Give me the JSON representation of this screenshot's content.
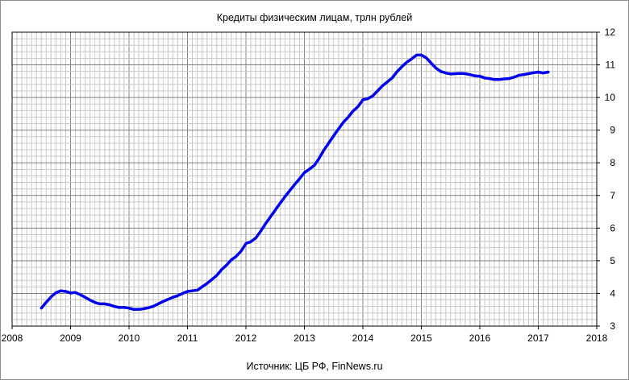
{
  "chart_data": {
    "type": "line",
    "title": "Кредиты физическим лицам,  трлн рублей",
    "source": "Источник: ЦБ РФ, FinNews.ru",
    "xlim": [
      2008,
      2018
    ],
    "ylim": [
      3,
      12
    ],
    "x_ticks": [
      "2008",
      "2009",
      "2010",
      "2011",
      "2012",
      "2013",
      "2014",
      "2015",
      "2016",
      "2017",
      "2018"
    ],
    "y_ticks": [
      "3",
      "4",
      "5",
      "6",
      "7",
      "8",
      "9",
      "10",
      "11",
      "12"
    ],
    "y_axis_side": "right",
    "grid": true,
    "legend": "none",
    "line_color": "#0000ee",
    "grid_color": "#c8c8c8",
    "major_grid_color": "#808080",
    "series": [
      {
        "x": [
          2008.5,
          2008.58,
          2008.67,
          2008.75,
          2008.83,
          2008.92,
          2009.0,
          2009.08,
          2009.17,
          2009.25,
          2009.33,
          2009.42,
          2009.5,
          2009.58,
          2009.67,
          2009.75,
          2009.83,
          2009.92,
          2010.0,
          2010.08,
          2010.17,
          2010.25,
          2010.33,
          2010.42,
          2010.5,
          2010.58,
          2010.67,
          2010.75,
          2010.83,
          2010.92,
          2011.0,
          2011.08,
          2011.17,
          2011.25,
          2011.33,
          2011.42,
          2011.5,
          2011.58,
          2011.67,
          2011.75,
          2011.83,
          2011.92,
          2012.0,
          2012.08,
          2012.17,
          2012.25,
          2012.33,
          2012.42,
          2012.5,
          2012.58,
          2012.67,
          2012.75,
          2012.83,
          2012.92,
          2013.0,
          2013.08,
          2013.17,
          2013.25,
          2013.33,
          2013.42,
          2013.5,
          2013.58,
          2013.67,
          2013.75,
          2013.83,
          2013.92,
          2014.0,
          2014.08,
          2014.17,
          2014.25,
          2014.33,
          2014.42,
          2014.5,
          2014.58,
          2014.67,
          2014.75,
          2014.83,
          2014.92,
          2015.0,
          2015.08,
          2015.17,
          2015.25,
          2015.33,
          2015.42,
          2015.5,
          2015.58,
          2015.67,
          2015.75,
          2015.83,
          2015.92,
          2016.0,
          2016.08,
          2016.17,
          2016.25,
          2016.33,
          2016.42,
          2016.5,
          2016.58,
          2016.67,
          2016.75,
          2016.83,
          2016.92,
          2017.0,
          2017.08,
          2017.17
        ],
        "y": [
          3.55,
          3.72,
          3.9,
          4.02,
          4.08,
          4.06,
          4.01,
          4.03,
          3.96,
          3.88,
          3.8,
          3.72,
          3.68,
          3.68,
          3.65,
          3.6,
          3.57,
          3.57,
          3.55,
          3.51,
          3.51,
          3.53,
          3.56,
          3.61,
          3.68,
          3.75,
          3.82,
          3.88,
          3.93,
          4.0,
          4.06,
          4.08,
          4.1,
          4.2,
          4.3,
          4.43,
          4.55,
          4.72,
          4.87,
          5.03,
          5.13,
          5.3,
          5.53,
          5.58,
          5.7,
          5.9,
          6.12,
          6.35,
          6.55,
          6.75,
          6.97,
          7.15,
          7.33,
          7.52,
          7.7,
          7.8,
          7.92,
          8.13,
          8.38,
          8.62,
          8.83,
          9.03,
          9.25,
          9.4,
          9.58,
          9.73,
          9.93,
          9.96,
          10.05,
          10.2,
          10.35,
          10.48,
          10.6,
          10.78,
          10.95,
          11.08,
          11.18,
          11.3,
          11.3,
          11.22,
          11.05,
          10.9,
          10.8,
          10.75,
          10.72,
          10.73,
          10.74,
          10.73,
          10.7,
          10.66,
          10.65,
          10.6,
          10.58,
          10.55,
          10.55,
          10.57,
          10.58,
          10.62,
          10.68,
          10.7,
          10.73,
          10.76,
          10.78,
          10.75,
          10.78
        ]
      }
    ]
  }
}
